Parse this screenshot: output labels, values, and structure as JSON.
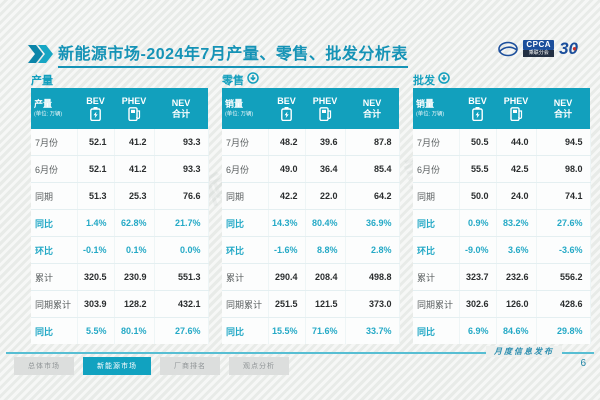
{
  "title": "新能源市场-2024年7月产量、零售、批发分析表",
  "logos": {
    "cpca_label": "CPCA",
    "cpca_sub": "乘联分会",
    "anniversary": "30"
  },
  "watermark": "CPCA 乘联会",
  "unit_note": "(单位: 万辆)",
  "colors": {
    "accent_teal": "#12a0bd",
    "highlight_text": "#24a9c6",
    "title_teal": "#1593b6",
    "logo_blue": "#1c4f9c",
    "logo_red": "#c8312b"
  },
  "tables": [
    {
      "section": "产量",
      "has_arrow": false,
      "corner_title": "产量",
      "corner_unit": "(单位: 万辆)",
      "col_headers": [
        {
          "label": "BEV",
          "icon": "battery-icon"
        },
        {
          "label": "PHEV",
          "icon": "charging-station-icon"
        },
        {
          "label": "NEV 合计"
        }
      ],
      "rows": [
        {
          "label": "7月份",
          "values": [
            "52.1",
            "41.2",
            "93.3"
          ],
          "highlight": false
        },
        {
          "label": "6月份",
          "values": [
            "52.1",
            "41.2",
            "93.3"
          ],
          "highlight": false
        },
        {
          "label": "同期",
          "values": [
            "51.3",
            "25.3",
            "76.6"
          ],
          "highlight": false
        },
        {
          "label": "同比",
          "values": [
            "1.4%",
            "62.8%",
            "21.7%"
          ],
          "highlight": true
        },
        {
          "label": "环比",
          "values": [
            "-0.1%",
            "0.1%",
            "0.0%"
          ],
          "highlight": true
        },
        {
          "label": "累计",
          "values": [
            "320.5",
            "230.9",
            "551.3"
          ],
          "highlight": false
        },
        {
          "label": "同期累计",
          "values": [
            "303.9",
            "128.2",
            "432.1"
          ],
          "highlight": false
        },
        {
          "label": "同比",
          "values": [
            "5.5%",
            "80.1%",
            "27.6%"
          ],
          "highlight": true
        }
      ]
    },
    {
      "section": "零售",
      "has_arrow": true,
      "corner_title": "销量",
      "corner_unit": "(单位: 万辆)",
      "col_headers": [
        {
          "label": "BEV",
          "icon": "battery-icon"
        },
        {
          "label": "PHEV",
          "icon": "charging-station-icon"
        },
        {
          "label": "NEV 合计"
        }
      ],
      "rows": [
        {
          "label": "7月份",
          "values": [
            "48.2",
            "39.6",
            "87.8"
          ],
          "highlight": false
        },
        {
          "label": "6月份",
          "values": [
            "49.0",
            "36.4",
            "85.4"
          ],
          "highlight": false
        },
        {
          "label": "同期",
          "values": [
            "42.2",
            "22.0",
            "64.2"
          ],
          "highlight": false
        },
        {
          "label": "同比",
          "values": [
            "14.3%",
            "80.4%",
            "36.9%"
          ],
          "highlight": true
        },
        {
          "label": "环比",
          "values": [
            "-1.6%",
            "8.8%",
            "2.8%"
          ],
          "highlight": true
        },
        {
          "label": "累计",
          "values": [
            "290.4",
            "208.4",
            "498.8"
          ],
          "highlight": false
        },
        {
          "label": "同期累计",
          "values": [
            "251.5",
            "121.5",
            "373.0"
          ],
          "highlight": false
        },
        {
          "label": "同比",
          "values": [
            "15.5%",
            "71.6%",
            "33.7%"
          ],
          "highlight": true
        }
      ]
    },
    {
      "section": "批发",
      "has_arrow": true,
      "corner_title": "销量",
      "corner_unit": "(单位: 万辆)",
      "col_headers": [
        {
          "label": "BEV",
          "icon": "battery-icon"
        },
        {
          "label": "PHEV",
          "icon": "charging-station-icon"
        },
        {
          "label": "NEV 合计"
        }
      ],
      "rows": [
        {
          "label": "7月份",
          "values": [
            "50.5",
            "44.0",
            "94.5"
          ],
          "highlight": false
        },
        {
          "label": "6月份",
          "values": [
            "55.5",
            "42.5",
            "98.0"
          ],
          "highlight": false
        },
        {
          "label": "同期",
          "values": [
            "50.0",
            "24.0",
            "74.1"
          ],
          "highlight": false
        },
        {
          "label": "同比",
          "values": [
            "0.9%",
            "83.2%",
            "27.6%"
          ],
          "highlight": true
        },
        {
          "label": "环比",
          "values": [
            "-9.0%",
            "3.6%",
            "-3.6%"
          ],
          "highlight": true
        },
        {
          "label": "累计",
          "values": [
            "323.7",
            "232.6",
            "556.2"
          ],
          "highlight": false
        },
        {
          "label": "同期累计",
          "values": [
            "302.6",
            "126.0",
            "428.6"
          ],
          "highlight": false
        },
        {
          "label": "同比",
          "values": [
            "6.9%",
            "84.6%",
            "29.8%"
          ],
          "highlight": true
        }
      ]
    }
  ],
  "footer": {
    "tabs": [
      {
        "label": "总体市场",
        "active": false
      },
      {
        "label": "新能源市场",
        "active": true
      },
      {
        "label": "厂商排名",
        "active": false
      },
      {
        "label": "观点分析",
        "active": false
      }
    ],
    "release_label": "月度信息发布",
    "page": "6"
  }
}
